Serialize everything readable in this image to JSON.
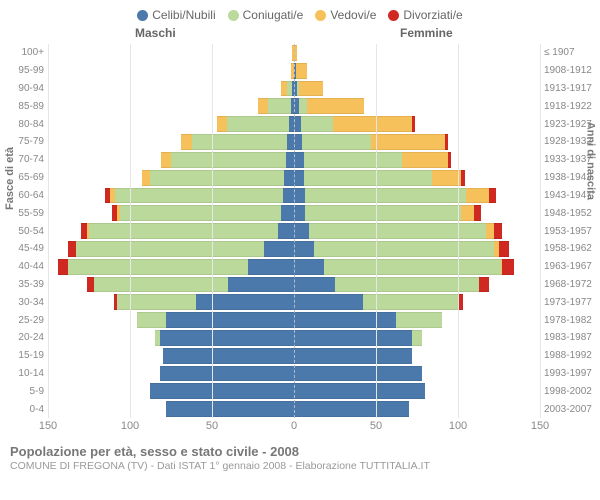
{
  "legend": [
    {
      "label": "Celibi/Nubili",
      "color": "#4b79ab"
    },
    {
      "label": "Coniugati/e",
      "color": "#bcd99c"
    },
    {
      "label": "Vedovi/e",
      "color": "#f6c15a"
    },
    {
      "label": "Divorziati/e",
      "color": "#cf2921"
    }
  ],
  "gender": {
    "male": "Maschi",
    "female": "Femmine"
  },
  "axis_titles": {
    "left": "Fasce di età",
    "right": "Anni di nascita"
  },
  "x_axis": {
    "max": 150,
    "ticks": [
      150,
      100,
      50,
      0,
      50,
      100,
      150
    ]
  },
  "colors": {
    "grid": "#e6e6e6",
    "celibi": "#4b79ab",
    "coniugati": "#bcd99c",
    "vedovi": "#f6c15a",
    "divorziati": "#cf2921",
    "bg": "#ffffff"
  },
  "chart_type": "population-pyramid",
  "rows": [
    {
      "age": "100+",
      "birth": "≤ 1907",
      "m": {
        "c": 0,
        "g": 0,
        "v": 1,
        "d": 0
      },
      "f": {
        "c": 0,
        "g": 0,
        "v": 2,
        "d": 0
      }
    },
    {
      "age": "95-99",
      "birth": "1908-1912",
      "m": {
        "c": 0,
        "g": 0,
        "v": 2,
        "d": 0
      },
      "f": {
        "c": 1,
        "g": 0,
        "v": 7,
        "d": 0
      }
    },
    {
      "age": "90-94",
      "birth": "1913-1917",
      "m": {
        "c": 1,
        "g": 3,
        "v": 4,
        "d": 0
      },
      "f": {
        "c": 2,
        "g": 1,
        "v": 15,
        "d": 0
      }
    },
    {
      "age": "85-89",
      "birth": "1918-1922",
      "m": {
        "c": 2,
        "g": 14,
        "v": 6,
        "d": 0
      },
      "f": {
        "c": 3,
        "g": 5,
        "v": 35,
        "d": 0
      }
    },
    {
      "age": "80-84",
      "birth": "1923-1927",
      "m": {
        "c": 3,
        "g": 38,
        "v": 6,
        "d": 0
      },
      "f": {
        "c": 4,
        "g": 20,
        "v": 48,
        "d": 2
      }
    },
    {
      "age": "75-79",
      "birth": "1928-1932",
      "m": {
        "c": 4,
        "g": 58,
        "v": 7,
        "d": 0
      },
      "f": {
        "c": 5,
        "g": 42,
        "v": 45,
        "d": 2
      }
    },
    {
      "age": "70-74",
      "birth": "1933-1937",
      "m": {
        "c": 5,
        "g": 70,
        "v": 6,
        "d": 0
      },
      "f": {
        "c": 6,
        "g": 60,
        "v": 28,
        "d": 2
      }
    },
    {
      "age": "65-69",
      "birth": "1938-1942",
      "m": {
        "c": 6,
        "g": 82,
        "v": 5,
        "d": 0
      },
      "f": {
        "c": 6,
        "g": 78,
        "v": 18,
        "d": 2
      }
    },
    {
      "age": "60-64",
      "birth": "1943-1947",
      "m": {
        "c": 7,
        "g": 102,
        "v": 3,
        "d": 3
      },
      "f": {
        "c": 7,
        "g": 98,
        "v": 14,
        "d": 4
      }
    },
    {
      "age": "55-59",
      "birth": "1948-1952",
      "m": {
        "c": 8,
        "g": 98,
        "v": 2,
        "d": 3
      },
      "f": {
        "c": 7,
        "g": 95,
        "v": 8,
        "d": 4
      }
    },
    {
      "age": "50-54",
      "birth": "1953-1957",
      "m": {
        "c": 10,
        "g": 115,
        "v": 1,
        "d": 4
      },
      "f": {
        "c": 9,
        "g": 108,
        "v": 5,
        "d": 5
      }
    },
    {
      "age": "45-49",
      "birth": "1958-1962",
      "m": {
        "c": 18,
        "g": 115,
        "v": 0,
        "d": 5
      },
      "f": {
        "c": 12,
        "g": 110,
        "v": 3,
        "d": 6
      }
    },
    {
      "age": "40-44",
      "birth": "1963-1967",
      "m": {
        "c": 28,
        "g": 110,
        "v": 0,
        "d": 6
      },
      "f": {
        "c": 18,
        "g": 108,
        "v": 1,
        "d": 7
      }
    },
    {
      "age": "35-39",
      "birth": "1968-1972",
      "m": {
        "c": 40,
        "g": 82,
        "v": 0,
        "d": 4
      },
      "f": {
        "c": 25,
        "g": 88,
        "v": 0,
        "d": 6
      }
    },
    {
      "age": "30-34",
      "birth": "1973-1977",
      "m": {
        "c": 60,
        "g": 48,
        "v": 0,
        "d": 2
      },
      "f": {
        "c": 42,
        "g": 58,
        "v": 0,
        "d": 3
      }
    },
    {
      "age": "25-29",
      "birth": "1978-1982",
      "m": {
        "c": 78,
        "g": 18,
        "v": 0,
        "d": 0
      },
      "f": {
        "c": 62,
        "g": 28,
        "v": 0,
        "d": 0
      }
    },
    {
      "age": "20-24",
      "birth": "1983-1987",
      "m": {
        "c": 82,
        "g": 3,
        "v": 0,
        "d": 0
      },
      "f": {
        "c": 72,
        "g": 6,
        "v": 0,
        "d": 0
      }
    },
    {
      "age": "15-19",
      "birth": "1988-1992",
      "m": {
        "c": 80,
        "g": 0,
        "v": 0,
        "d": 0
      },
      "f": {
        "c": 72,
        "g": 0,
        "v": 0,
        "d": 0
      }
    },
    {
      "age": "10-14",
      "birth": "1993-1997",
      "m": {
        "c": 82,
        "g": 0,
        "v": 0,
        "d": 0
      },
      "f": {
        "c": 78,
        "g": 0,
        "v": 0,
        "d": 0
      }
    },
    {
      "age": "5-9",
      "birth": "1998-2002",
      "m": {
        "c": 88,
        "g": 0,
        "v": 0,
        "d": 0
      },
      "f": {
        "c": 80,
        "g": 0,
        "v": 0,
        "d": 0
      }
    },
    {
      "age": "0-4",
      "birth": "2003-2007",
      "m": {
        "c": 78,
        "g": 0,
        "v": 0,
        "d": 0
      },
      "f": {
        "c": 70,
        "g": 0,
        "v": 0,
        "d": 0
      }
    }
  ],
  "footer": {
    "title": "Popolazione per età, sesso e stato civile - 2008",
    "subtitle": "COMUNE DI FREGONA (TV) - Dati ISTAT 1° gennaio 2008 - Elaborazione TUTTITALIA.IT"
  }
}
